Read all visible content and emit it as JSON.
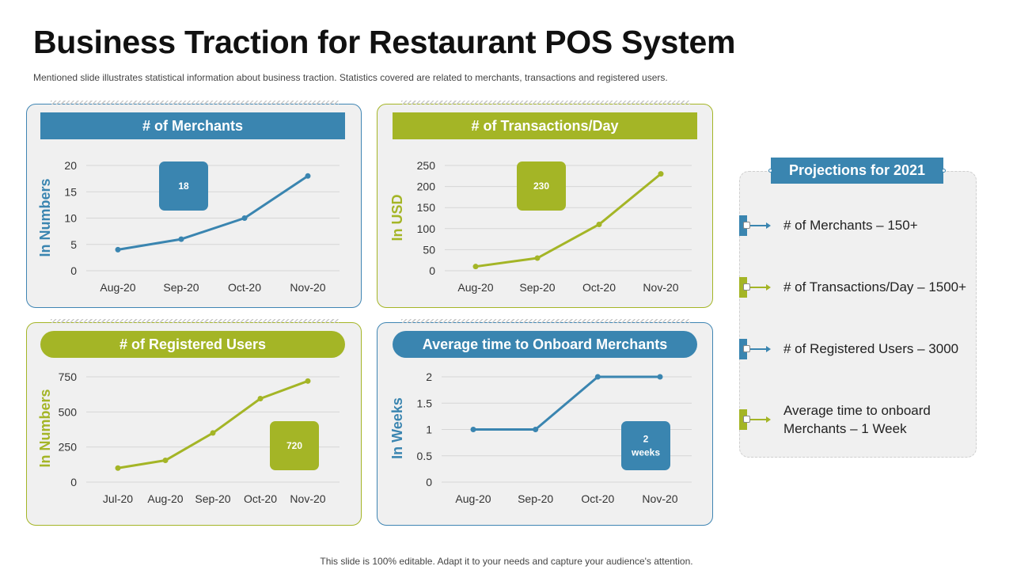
{
  "title": "Business Traction for Restaurant POS System",
  "subtitle": "Mentioned slide illustrates statistical information about business traction. Statistics covered are related to merchants, transactions and registered users.",
  "footer": "This slide is 100% editable. Adapt it to your needs and capture your audience's attention.",
  "colors": {
    "blue": "#3a85b0",
    "green": "#a4b526"
  },
  "chart_data": [
    {
      "id": "merchants",
      "type": "line",
      "title": "# of Merchants",
      "ylabel": "In Numbers",
      "categories": [
        "Aug-20",
        "Sep-20",
        "Oct-20",
        "Nov-20"
      ],
      "values": [
        4,
        6,
        10,
        18
      ],
      "ylim": [
        0,
        20
      ],
      "yticks": [
        0,
        5,
        10,
        15,
        20
      ],
      "callout": "18",
      "color": "#3a85b0",
      "grid": true
    },
    {
      "id": "transactions",
      "type": "line",
      "title": "# of Transactions/Day",
      "ylabel": "In USD",
      "categories": [
        "Aug-20",
        "Sep-20",
        "Oct-20",
        "Nov-20"
      ],
      "values": [
        10,
        30,
        110,
        230
      ],
      "ylim": [
        0,
        250
      ],
      "yticks": [
        0,
        50,
        100,
        150,
        200,
        250
      ],
      "callout": "230",
      "color": "#a4b526",
      "grid": true
    },
    {
      "id": "users",
      "type": "line",
      "title": "# of Registered Users",
      "ylabel": "In Numbers",
      "categories": [
        "Jul-20",
        "Aug-20",
        "Sep-20",
        "Oct-20",
        "Nov-20"
      ],
      "values": [
        100,
        155,
        350,
        595,
        720
      ],
      "ylim": [
        0,
        750
      ],
      "yticks": [
        0,
        250,
        500,
        750
      ],
      "callout": "720",
      "color": "#a4b526",
      "grid": true
    },
    {
      "id": "onboard",
      "type": "line",
      "title": "Average time to Onboard Merchants",
      "ylabel": "In Weeks",
      "categories": [
        "Aug-20",
        "Sep-20",
        "Oct-20",
        "Nov-20"
      ],
      "values": [
        1,
        1,
        2,
        2
      ],
      "ylim": [
        0,
        2
      ],
      "yticks": [
        0,
        0.5,
        1,
        1.5,
        2
      ],
      "callout_lines": [
        "2",
        "weeks"
      ],
      "color": "#3a85b0",
      "grid": true
    }
  ],
  "projections": {
    "title": "Projections for 2021",
    "items": [
      {
        "text": "# of Merchants – 150+",
        "color": "#3a85b0"
      },
      {
        "text": "# of Transactions/Day – 1500+",
        "color": "#a4b526"
      },
      {
        "text": "# of Registered Users – 3000",
        "color": "#3a85b0"
      },
      {
        "text": "Average time to onboard Merchants – 1 Week",
        "color": "#a4b526"
      }
    ]
  }
}
